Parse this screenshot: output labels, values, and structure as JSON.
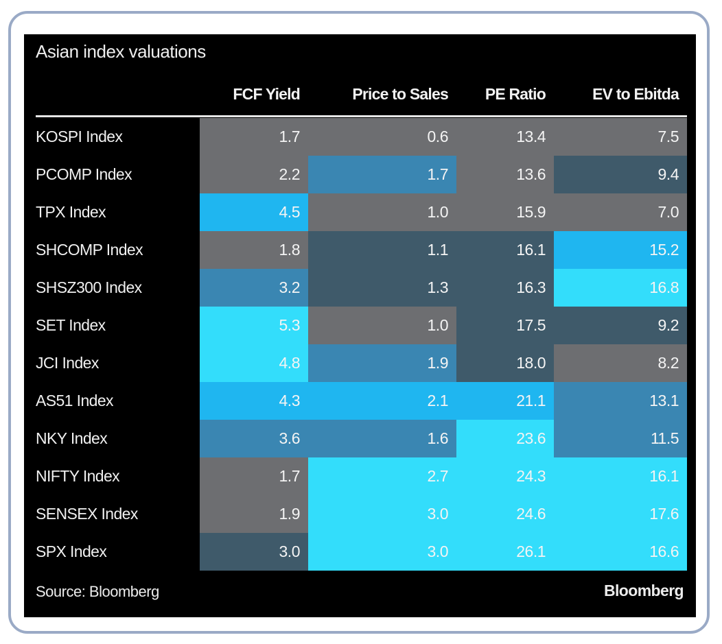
{
  "colors": {
    "gray": "#6d6e71",
    "slate": "#3f5a6a",
    "steel": "#3a86b2",
    "blue": "#1fb6f0",
    "cyan": "#33ddfb"
  },
  "chart_data": {
    "type": "table",
    "title": "Asian index valuations",
    "columns": [
      "FCF Yield",
      "Price to Sales",
      "PE Ratio",
      "EV to Ebitda"
    ],
    "rows": [
      {
        "label": "KOSPI Index",
        "values": [
          "1.7",
          "0.6",
          "13.4",
          "7.5"
        ],
        "shades": [
          "gray",
          "gray",
          "gray",
          "gray"
        ]
      },
      {
        "label": "PCOMP Index",
        "values": [
          "2.2",
          "1.7",
          "13.6",
          "9.4"
        ],
        "shades": [
          "gray",
          "steel",
          "gray",
          "slate"
        ]
      },
      {
        "label": "TPX Index",
        "values": [
          "4.5",
          "1.0",
          "15.9",
          "7.0"
        ],
        "shades": [
          "blue",
          "gray",
          "gray",
          "gray"
        ]
      },
      {
        "label": "SHCOMP Index",
        "values": [
          "1.8",
          "1.1",
          "16.1",
          "15.2"
        ],
        "shades": [
          "gray",
          "slate",
          "slate",
          "blue"
        ]
      },
      {
        "label": "SHSZ300 Index",
        "values": [
          "3.2",
          "1.3",
          "16.3",
          "16.8"
        ],
        "shades": [
          "steel",
          "slate",
          "slate",
          "cyan"
        ]
      },
      {
        "label": "SET Index",
        "values": [
          "5.3",
          "1.0",
          "17.5",
          "9.2"
        ],
        "shades": [
          "cyan",
          "gray",
          "slate",
          "slate"
        ]
      },
      {
        "label": "JCI Index",
        "values": [
          "4.8",
          "1.9",
          "18.0",
          "8.2"
        ],
        "shades": [
          "cyan",
          "steel",
          "slate",
          "gray"
        ]
      },
      {
        "label": "AS51 Index",
        "values": [
          "4.3",
          "2.1",
          "21.1",
          "13.1"
        ],
        "shades": [
          "blue",
          "blue",
          "blue",
          "steel"
        ]
      },
      {
        "label": "NKY Index",
        "values": [
          "3.6",
          "1.6",
          "23.6",
          "11.5"
        ],
        "shades": [
          "steel",
          "steel",
          "cyan",
          "steel"
        ]
      },
      {
        "label": "NIFTY Index",
        "values": [
          "1.7",
          "2.7",
          "24.3",
          "16.1"
        ],
        "shades": [
          "gray",
          "cyan",
          "cyan",
          "cyan"
        ]
      },
      {
        "label": "SENSEX Index",
        "values": [
          "1.9",
          "3.0",
          "24.6",
          "17.6"
        ],
        "shades": [
          "gray",
          "cyan",
          "cyan",
          "cyan"
        ]
      },
      {
        "label": "SPX Index",
        "values": [
          "3.0",
          "3.0",
          "26.1",
          "16.6"
        ],
        "shades": [
          "slate",
          "cyan",
          "cyan",
          "cyan"
        ]
      }
    ]
  },
  "footer": {
    "source": "Source: Bloomberg",
    "brand": "Bloomberg"
  }
}
